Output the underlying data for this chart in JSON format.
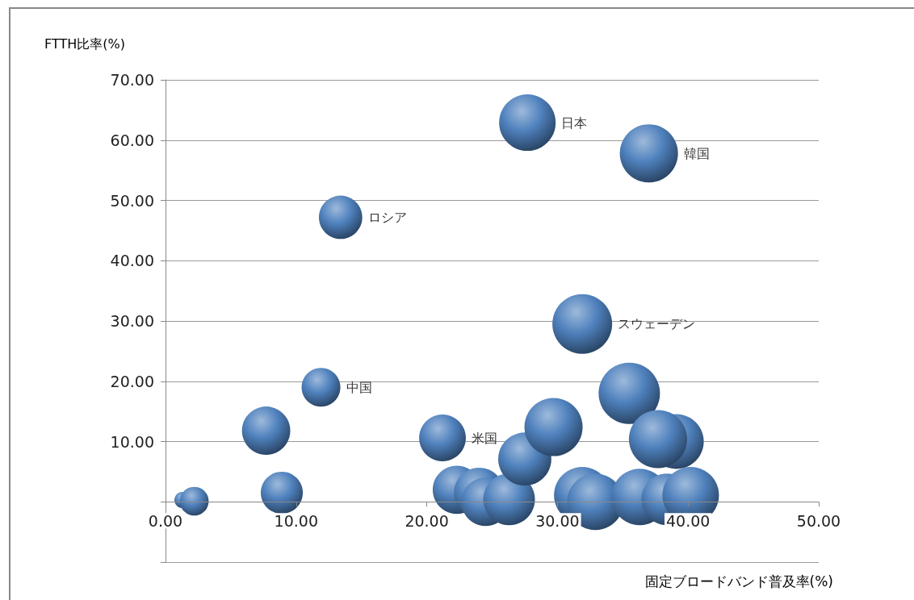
{
  "chart_data": {
    "type": "bubble",
    "xlabel": "固定ブロードバンド普及率(%)",
    "ylabel": "FTTH比率(%)",
    "x": [
      1.3,
      2.2,
      7.7,
      8.9,
      11.9,
      13.4,
      21.2,
      22.3,
      24.0,
      24.5,
      26.3,
      27.5,
      29.7,
      27.7,
      37.0,
      31.9,
      35.5,
      39.1,
      37.7,
      31.9,
      32.9,
      36.3,
      38.4,
      40.2
    ],
    "values": [
      0.3,
      0.1,
      11.8,
      1.5,
      19.0,
      47.2,
      10.6,
      2.0,
      1.5,
      0.0,
      0.4,
      7.1,
      12.4,
      62.9,
      57.8,
      29.5,
      18.0,
      10.0,
      10.4,
      1.1,
      0.0,
      0.8,
      0.4,
      1.1
    ],
    "sizes": [
      0.07,
      0.22,
      0.62,
      0.47,
      0.4,
      0.5,
      0.58,
      0.62,
      0.67,
      0.62,
      0.71,
      0.75,
      0.9,
      0.85,
      0.9,
      0.95,
      1,
      0.8,
      0.9,
      0.85,
      0.85,
      0.85,
      0.71,
      0.85
    ],
    "color": "#4f81bd",
    "xlim": [
      0,
      50
    ],
    "xticks": [
      {
        "value": 0,
        "label": "0.00"
      },
      {
        "value": 10,
        "label": "10.00"
      },
      {
        "value": 20,
        "label": "20.00"
      },
      {
        "value": 30,
        "label": "30.00"
      },
      {
        "value": 40,
        "label": "40.00"
      },
      {
        "value": 50,
        "label": "50.00"
      }
    ],
    "ylim": [
      -10,
      70
    ],
    "yticks": [
      {
        "value": -10,
        "label": null
      },
      {
        "value": 0,
        "label": null
      },
      {
        "value": 10,
        "label": "10.00"
      },
      {
        "value": 20,
        "label": "20.00"
      },
      {
        "value": 30,
        "label": "30.00"
      },
      {
        "value": 40,
        "label": "40.00"
      },
      {
        "value": 50,
        "label": "50.00"
      },
      {
        "value": 60,
        "label": "60.00"
      },
      {
        "value": 70,
        "label": "70.00"
      }
    ],
    "grid": "y",
    "annotations": [
      {
        "text": "日本",
        "x": 27.7,
        "y": 62.9
      },
      {
        "text": "韓国",
        "x": 37.0,
        "y": 57.8
      },
      {
        "text": "ロシア",
        "x": 13.4,
        "y": 47.2
      },
      {
        "text": "スウェーデン",
        "x": 31.9,
        "y": 29.5
      },
      {
        "text": "中国",
        "x": 11.9,
        "y": 19.0
      },
      {
        "text": "米国",
        "x": 21.2,
        "y": 10.6
      }
    ]
  }
}
